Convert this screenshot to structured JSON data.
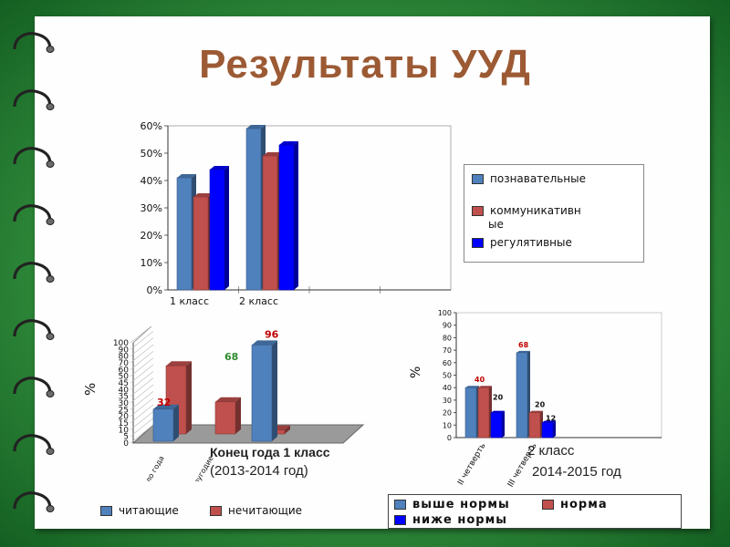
{
  "title": "Результаты УУД",
  "colors": {
    "blue": "#4f81bd",
    "red": "#c0504d",
    "bright_blue": "#0000ff",
    "title": "#9c5a34"
  },
  "charts": {
    "uud": {
      "type": "bar",
      "categories": [
        "1 класс",
        "2 класс"
      ],
      "y_ticks": [
        "0%",
        "10%",
        "20%",
        "30%",
        "40%",
        "50%",
        "60%"
      ],
      "ylim": [
        0,
        60
      ],
      "series": [
        {
          "name": "познавательные",
          "values": [
            41,
            59
          ]
        },
        {
          "name": "коммуникативные",
          "values": [
            34,
            49
          ]
        },
        {
          "name": "регулятивные",
          "values": [
            44,
            53
          ]
        }
      ],
      "legend": [
        {
          "line1": "познавательные",
          "line2": ""
        },
        {
          "line1": "коммуникативн",
          "line2": "ые"
        },
        {
          "line1": "регулятивные",
          "line2": ""
        }
      ]
    },
    "reading": {
      "type": "bar",
      "categories": [
        "начало года",
        "I полугодие",
        "Конец года 1 класс"
      ],
      "category_labels": [
        "начало года",
        "I полугодие"
      ],
      "ylabel": "%",
      "y_ticks": [
        "0",
        "5",
        "10",
        "15",
        "20",
        "25",
        "30",
        "35",
        "40",
        "45",
        "50",
        "60",
        "70",
        "80",
        "90",
        "100"
      ],
      "ylim": [
        0,
        100
      ],
      "series": [
        {
          "name": "читающие",
          "values": [
            32,
            68,
            96
          ]
        },
        {
          "name": "нечитающие",
          "values": [
            68,
            32,
            4
          ]
        }
      ],
      "data_labels": [
        "32",
        "68",
        "96"
      ],
      "caption_line1": "Конец года 1 класс",
      "caption_line2": "(2013-2014 год)",
      "legend": [
        "читающие",
        "нечитающие"
      ]
    },
    "norm": {
      "type": "bar",
      "categories": [
        "II четверть",
        "III четверть"
      ],
      "ylabel": "%",
      "y_ticks": [
        "0",
        "10",
        "20",
        "30",
        "40",
        "50",
        "60",
        "70",
        "80",
        "90",
        "100"
      ],
      "ylim": [
        0,
        100
      ],
      "series": [
        {
          "name": "выше нормы",
          "values": [
            40,
            68
          ]
        },
        {
          "name": "норма",
          "values": [
            40,
            20
          ]
        },
        {
          "name": "ниже нормы",
          "values": [
            20,
            12
          ]
        }
      ],
      "data_labels": [
        [
          "40",
          "20"
        ],
        [
          "68",
          "20",
          "12"
        ]
      ],
      "caption_line1": "2 класс",
      "caption_line2": "2014-2015 год",
      "legend": [
        "выше нормы",
        "норма",
        "ниже нормы"
      ]
    }
  }
}
